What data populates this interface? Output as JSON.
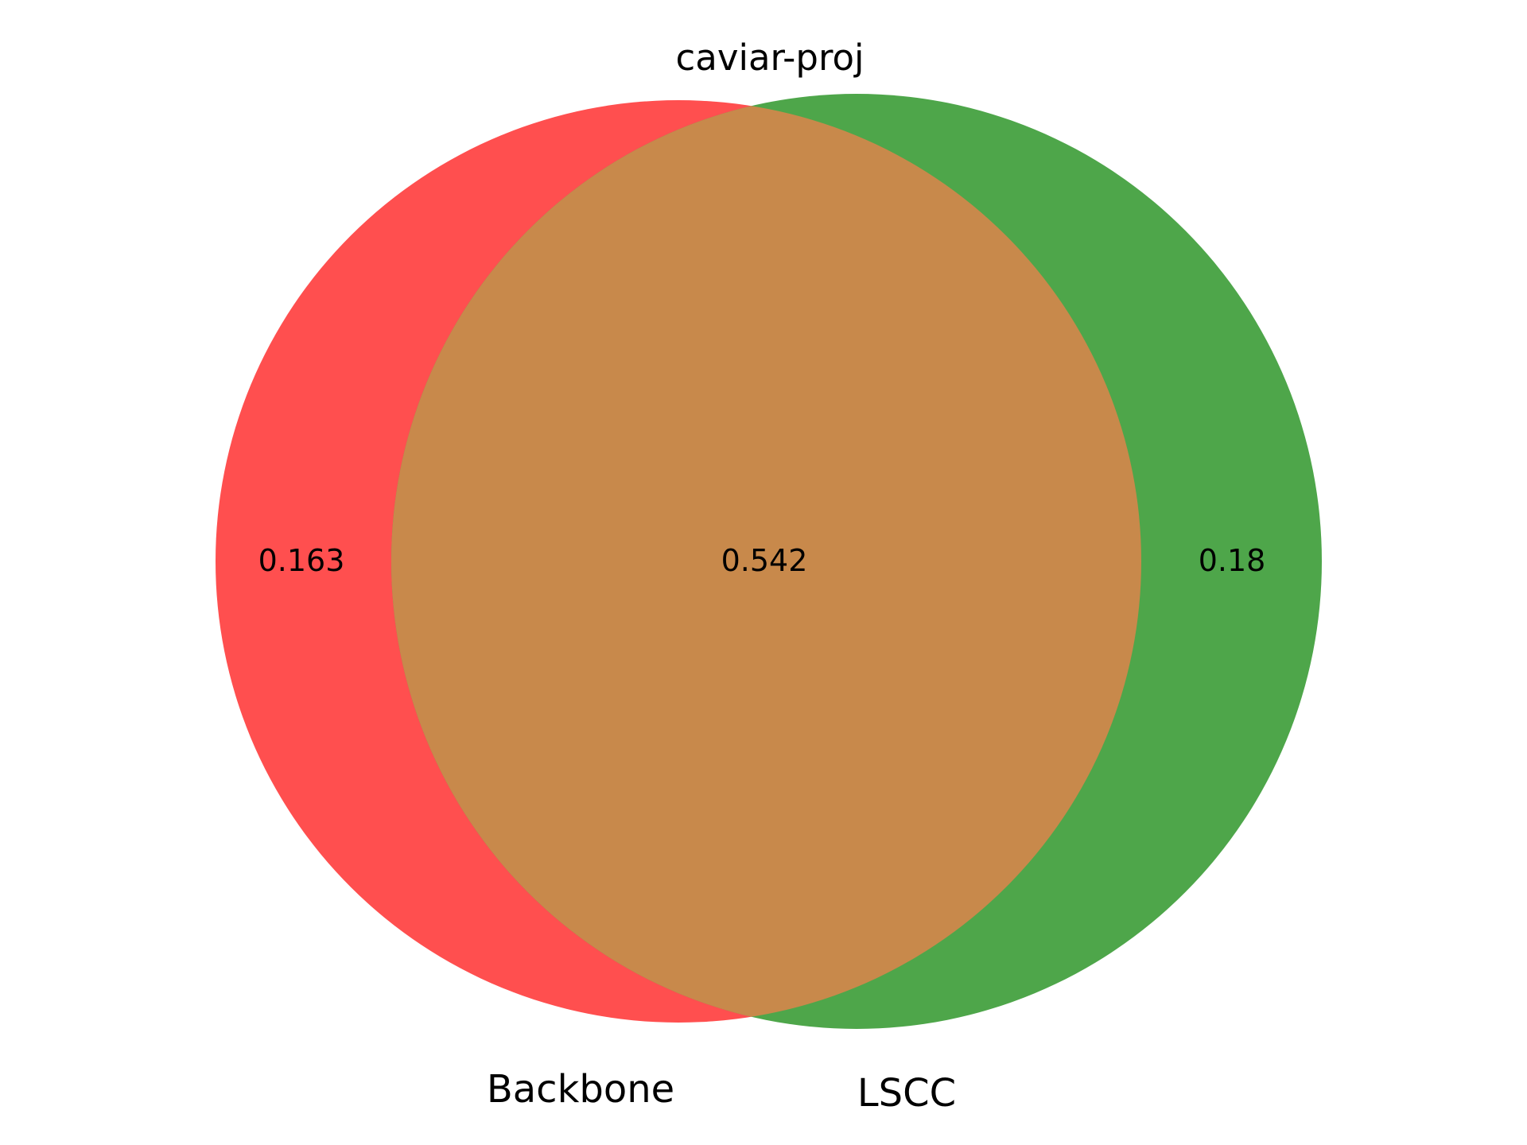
{
  "title": "caviar-proj",
  "sets": [
    {
      "name": "Backbone",
      "color": "#ff4f4f"
    },
    {
      "name": "LSCC",
      "color": "#4ea64a"
    }
  ],
  "overlap_color": "#c8894b",
  "regions": {
    "only_a": "0.163",
    "both": "0.542",
    "only_b": "0.18"
  }
}
